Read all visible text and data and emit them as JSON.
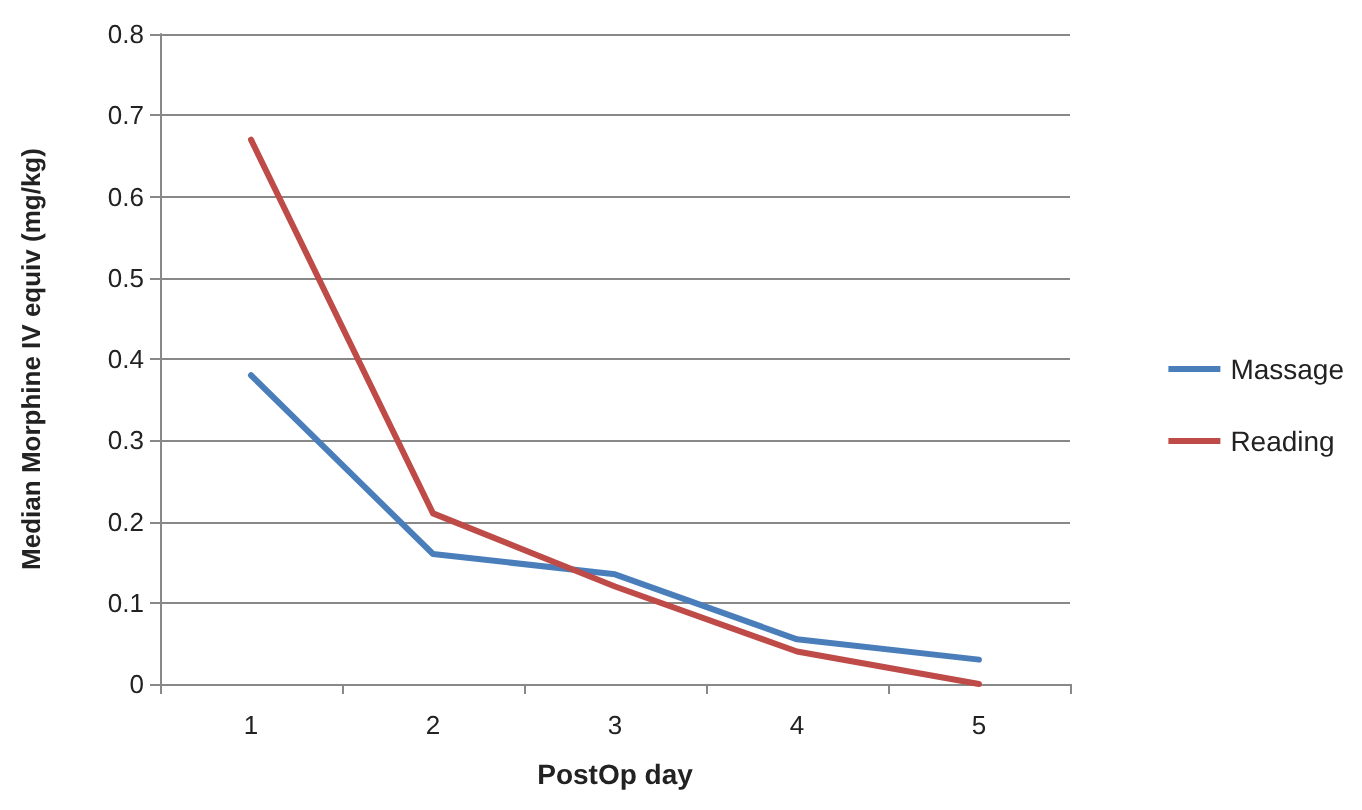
{
  "chart_data": {
    "type": "line",
    "xlabel": "PostOp day",
    "ylabel": "Median Morphine IV equiv (mg/kg)",
    "categories": [
      "1",
      "2",
      "3",
      "4",
      "5"
    ],
    "series": [
      {
        "name": "Massage",
        "color": "#4a7ebb",
        "values": [
          0.38,
          0.16,
          0.135,
          0.055,
          0.03
        ]
      },
      {
        "name": "Reading",
        "color": "#be4b48",
        "values": [
          0.67,
          0.21,
          0.12,
          0.04,
          0
        ]
      }
    ],
    "ylim": [
      0,
      0.8
    ],
    "yticks": [
      0,
      0.1,
      0.2,
      0.3,
      0.4,
      0.5,
      0.6,
      0.7,
      0.8
    ],
    "grid": "y",
    "legend": "right",
    "marker": "none",
    "line_style": "solid"
  }
}
